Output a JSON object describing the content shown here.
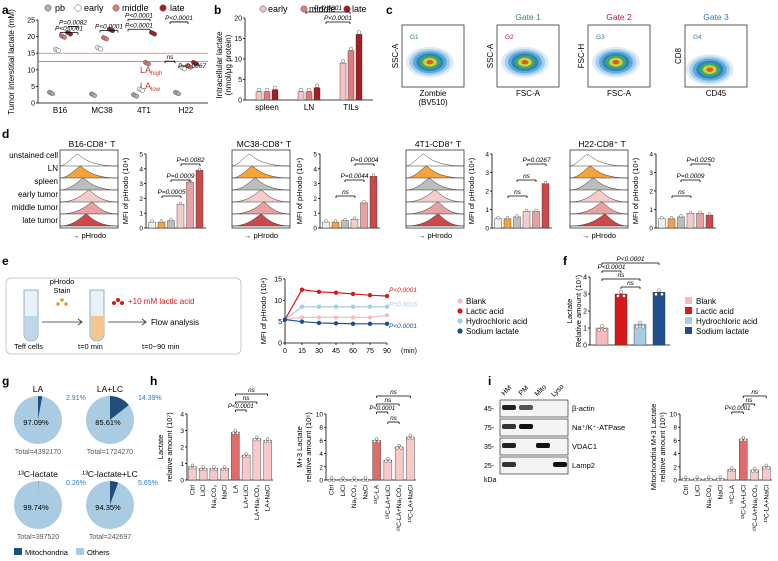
{
  "colors": {
    "early": "#f2c4c4",
    "middle": "#e07b7b",
    "late": "#a31f24",
    "pb": "#b0b0b0",
    "blank": "#f5bcbc",
    "lactic": "#d7191c",
    "hcl": "#a6cde3",
    "nalac": "#1f4e8c",
    "ctrl": "#f4a6a6",
    "orange": "#f3a43b",
    "mito": "#1f4e79",
    "others": "#a9cce3",
    "flowG": "#2b7bb9",
    "gate1": "#2e8b57",
    "gate2": "#b0203a",
    "gate3": "#2b7bb9"
  },
  "labels": {
    "a": "a",
    "b": "b",
    "c": "c",
    "d": "d",
    "e": "e",
    "f": "f",
    "g": "g",
    "h": "h",
    "i": "i"
  },
  "panel_a": {
    "legend": [
      "pb",
      "early",
      "middle",
      "late"
    ],
    "ylabel": "Tumor interstitial lactate (mM)",
    "yticks": [
      "0",
      "5",
      "10",
      "15",
      "20",
      "25"
    ],
    "categories": [
      "B16",
      "MC38",
      "4T1",
      "H22"
    ],
    "pvals": [
      "P=0.0082",
      "P<0.0001",
      "P<0.0001",
      "P<0.0001",
      "P<0.0001",
      "P<0.0001",
      "P=0.0067"
    ],
    "ns": "ns",
    "la_high": "LA",
    "la_high_sub": "high",
    "la_low": "LA",
    "la_low_sub": "low"
  },
  "panel_b": {
    "legend": [
      "early",
      "middle",
      "late"
    ],
    "ylabel1": "Intracellular lactate",
    "ylabel2": "(nmol/μg protein)",
    "yticks": [
      "0",
      "5",
      "10",
      "15",
      "20"
    ],
    "categories": [
      "spleen",
      "LN",
      "TILs"
    ],
    "pvals": [
      "P<0.0001",
      "P<0.0001"
    ]
  },
  "panel_c": {
    "plots": [
      {
        "title": "",
        "xlabel": "Zombie",
        "xlabel2": "(BV510)",
        "ylabel": "SSC-A",
        "gate": "G1"
      },
      {
        "title": "Gate 1",
        "xlabel": "FSC-A",
        "ylabel": "SSC-A",
        "gate": "G2"
      },
      {
        "title": "Gate 2",
        "xlabel": "FSC-A",
        "ylabel": "FSC-H",
        "gate": "G3"
      },
      {
        "title": "Gate 3",
        "xlabel": "CD45",
        "ylabel": "CD8",
        "gate": "G4"
      }
    ]
  },
  "panel_d": {
    "rows": [
      "unstained cell",
      "LN",
      "spleen",
      "early tumor",
      "middle tumor",
      "late tumor"
    ],
    "hist_xlabel": "→ pHrodo",
    "ylabel": "MFI of pHrodo (10⁴)",
    "groups": [
      {
        "title": "B16-CD8⁺ T",
        "yticks": [
          "0",
          "1",
          "2",
          "3",
          "4",
          "5"
        ],
        "pvals": [
          "P=0.0082",
          "P=0.0009",
          "P=0.0005"
        ]
      },
      {
        "title": "MC38-CD8⁺ T",
        "yticks": [
          "0",
          "1",
          "2",
          "3",
          "4",
          "5"
        ],
        "pvals": [
          "P=0.0004",
          "P=0.0044",
          "ns"
        ]
      },
      {
        "title": "4T1-CD8⁺ T",
        "yticks": [
          "0",
          "1",
          "2",
          "3",
          "4"
        ],
        "pvals": [
          "P=0.0267",
          "ns",
          "ns"
        ]
      },
      {
        "title": "H22-CD8⁺ T",
        "yticks": [
          "0",
          "1",
          "2",
          "3",
          "4"
        ],
        "pvals": [
          "P=0.0250",
          "P=0.0009",
          "ns"
        ]
      }
    ]
  },
  "panel_e": {
    "stain1": "pHrodo",
    "stain2": "Stain",
    "add": "+10 mM lactic acid",
    "flow": "Flow analysis",
    "teff": "Teff cells",
    "t0": "t=0 min",
    "t90": "t=0~90 min",
    "ylabel": "MFI of pHrodo (10⁴)",
    "xlabel": "(min)",
    "pvals": [
      "P<0.0001",
      "P=0.0016",
      "P<0.0001"
    ],
    "legend": [
      "Blank",
      "Lactic acid",
      "Hydrochloric acid",
      "Sodium lactate"
    ]
  },
  "panel_f": {
    "ylabel1": "Lactate",
    "ylabel2": "Relative amount (10⁷)",
    "yticks": [
      "0",
      "1",
      "2",
      "3",
      "4"
    ],
    "pvals": [
      "P<0.0001",
      "P<0.0001",
      "ns",
      "ns"
    ],
    "legend": [
      "Blank",
      "Lactic acid",
      "Hydrochloric acid",
      "Sodium lactate"
    ]
  },
  "panel_g": {
    "pies": [
      {
        "title": "LA",
        "mito": "2.91%",
        "others": "97.09%",
        "total": "Total=4392170"
      },
      {
        "title": "LA+LC",
        "mito": "14.39%",
        "others": "85.61%",
        "total": "Total=1724270"
      },
      {
        "title": "¹³C-lactate",
        "mito": "0.26%",
        "others": "99.74%",
        "total": "Total=397520"
      },
      {
        "title": "¹³C-lactate+LC",
        "mito": "5.65%",
        "others": "94.35%",
        "total": "Total=242697"
      }
    ],
    "legend": [
      "Mitochondria",
      "Others"
    ]
  },
  "panel_h": {
    "left": {
      "ylabel1": "Lactate",
      "ylabel2": "relative amount (10⁷)",
      "yticks": [
        "0",
        "1",
        "2",
        "3",
        "4"
      ],
      "ns": [
        "ns",
        "ns"
      ],
      "p": "P<0.0001",
      "categories": [
        "Ctrl",
        "LiCl",
        "Na₂CO₃",
        "NaCl",
        "LA",
        "LA+LiCl",
        "LA+Na₂CO₃",
        "LA+NaCl"
      ]
    },
    "right": {
      "ylabel1": "M+3 Lactate",
      "ylabel2": "relative amount (10⁶)",
      "yticks": [
        "0",
        "2",
        "4",
        "6",
        "8",
        "10"
      ],
      "ns": [
        "ns",
        "ns",
        "ns"
      ],
      "p": "P<0.0001",
      "categories": [
        "Ctrl",
        "LiCl",
        "Na₂CO₃",
        "NaCl",
        "¹³C-LA",
        "¹³C-LA+LiCl",
        "¹³C-LA+Na₂CO₃",
        "¹³C-LA+NaCl"
      ]
    }
  },
  "panel_i": {
    "lanes": [
      "HM",
      "PM",
      "Mito",
      "Lyso"
    ],
    "markers": [
      "45-",
      "75-",
      "35-",
      "25-"
    ],
    "kda": "kDa",
    "proteins": [
      "β-actin",
      "Na⁺/K⁺-ATPase",
      "VDAC1",
      "Lamp2"
    ],
    "chart": {
      "ylabel1": "Mitochondria M+3 Lactate",
      "ylabel2": "relative amount (10⁵)",
      "yticks": [
        "0",
        "2",
        "4",
        "6",
        "8",
        "10"
      ],
      "ns": [
        "ns",
        "ns",
        "ns"
      ],
      "p": "P<0.0001",
      "categories": [
        "Ctrl",
        "LiCl",
        "Na₂CO₃",
        "NaCl",
        "¹³C-LA",
        "¹³C-LA+LiCl",
        "¹³C-LA+Na₂CO₃",
        "¹³C-LA+NaCl"
      ]
    }
  },
  "chart_data": [
    {
      "panel": "a",
      "type": "scatter",
      "title": "",
      "ylabel": "Tumor interstitial lactate (mM)",
      "ylim": [
        0,
        25
      ],
      "categories": [
        "B16",
        "MC38",
        "4T1",
        "H22"
      ],
      "series": [
        {
          "name": "pb",
          "values": [
            3,
            2.5,
            2.3,
            3
          ]
        },
        {
          "name": "early",
          "values": [
            16,
            16.5,
            4,
            10.5
          ]
        },
        {
          "name": "middle",
          "values": [
            20,
            19.5,
            12,
            11
          ]
        },
        {
          "name": "late",
          "values": [
            21,
            22,
            21,
            12
          ]
        }
      ]
    },
    {
      "panel": "b",
      "type": "bar",
      "ylabel": "Intracellular lactate (nmol/μg protein)",
      "ylim": [
        0,
        20
      ],
      "categories": [
        "spleen",
        "LN",
        "TILs"
      ],
      "series": [
        {
          "name": "early",
          "values": [
            2,
            2,
            9
          ]
        },
        {
          "name": "middle",
          "values": [
            2,
            2,
            12
          ]
        },
        {
          "name": "late",
          "values": [
            2.5,
            3,
            16
          ]
        }
      ]
    },
    {
      "panel": "d",
      "type": "bar",
      "title": "B16-CD8⁺ T",
      "ylabel": "MFI of pHrodo (10⁴)",
      "ylim": [
        0,
        5
      ],
      "categories": [
        "unstained cell",
        "LN",
        "spleen",
        "early tumor",
        "middle tumor",
        "late tumor"
      ],
      "values": [
        0.4,
        0.4,
        0.5,
        1.6,
        3.1,
        3.9
      ]
    },
    {
      "panel": "d",
      "type": "bar",
      "title": "MC38-CD8⁺ T",
      "ylabel": "MFI of pHrodo (10⁴)",
      "ylim": [
        0,
        5
      ],
      "categories": [
        "unstained cell",
        "LN",
        "spleen",
        "early tumor",
        "middle tumor",
        "late tumor"
      ],
      "values": [
        0.4,
        0.4,
        0.5,
        0.6,
        1.7,
        3.5
      ]
    },
    {
      "panel": "d",
      "type": "bar",
      "title": "4T1-CD8⁺ T",
      "ylabel": "MFI of pHrodo (10⁴)",
      "ylim": [
        0,
        4
      ],
      "categories": [
        "unstained cell",
        "LN",
        "spleen",
        "early tumor",
        "middle tumor",
        "late tumor"
      ],
      "values": [
        0.5,
        0.5,
        0.6,
        0.9,
        0.9,
        2.4
      ]
    },
    {
      "panel": "d",
      "type": "bar",
      "title": "H22-CD8⁺ T",
      "ylabel": "MFI of pHrodo (10⁴)",
      "ylim": [
        0,
        4
      ],
      "categories": [
        "unstained cell",
        "LN",
        "spleen",
        "early tumor",
        "middle tumor",
        "late tumor"
      ],
      "values": [
        0.5,
        0.5,
        0.6,
        0.8,
        0.8,
        0.7
      ]
    },
    {
      "panel": "e",
      "type": "line",
      "ylabel": "MFI of pHrodo (10⁴)",
      "xlabel": "(min)",
      "x": [
        0,
        15,
        30,
        45,
        60,
        75,
        90
      ],
      "ylim": [
        0,
        15
      ],
      "xticks": [
        "0",
        "15",
        "30",
        "45",
        "60",
        "75",
        "90"
      ],
      "yticks": [
        "0",
        "5",
        "10",
        "15"
      ],
      "series": [
        {
          "name": "Blank",
          "values": [
            5.5,
            6,
            6,
            6,
            6,
            6,
            6.5
          ]
        },
        {
          "name": "Lactic acid",
          "values": [
            5.5,
            12.5,
            12,
            11.8,
            11.5,
            11.2,
            11
          ]
        },
        {
          "name": "Hydrochloric acid",
          "values": [
            5.5,
            8.5,
            8.5,
            8.5,
            8.5,
            8.5,
            8.5
          ]
        },
        {
          "name": "Sodium lactate",
          "values": [
            5.5,
            5,
            4.7,
            4.6,
            4.5,
            4.5,
            4.5
          ]
        }
      ]
    },
    {
      "panel": "f",
      "type": "bar",
      "ylabel": "Lactate Relative amount (10⁷)",
      "ylim": [
        0,
        4
      ],
      "categories": [
        "Blank",
        "Lactic acid",
        "Hydrochloric acid",
        "Sodium lactate"
      ],
      "values": [
        1,
        3,
        1.2,
        3.1
      ]
    },
    {
      "panel": "g",
      "type": "pie",
      "categories": [
        "Mitochondria",
        "Others"
      ],
      "series": [
        {
          "name": "LA",
          "values": [
            2.91,
            97.09
          ]
        },
        {
          "name": "LA+LC",
          "values": [
            14.39,
            85.61
          ]
        },
        {
          "name": "¹³C-lactate",
          "values": [
            0.26,
            99.74
          ]
        },
        {
          "name": "¹³C-lactate+LC",
          "values": [
            5.65,
            94.35
          ]
        }
      ]
    },
    {
      "panel": "h-left",
      "type": "bar",
      "ylabel": "Lactate relative amount (10⁷)",
      "ylim": [
        0,
        4
      ],
      "categories": [
        "Ctrl",
        "LiCl",
        "Na₂CO₃",
        "NaCl",
        "LA",
        "LA+LiCl",
        "LA+Na₂CO₃",
        "LA+NaCl"
      ],
      "values": [
        0.8,
        0.7,
        0.7,
        0.7,
        2.9,
        1.5,
        2.5,
        2.4
      ]
    },
    {
      "panel": "h-right",
      "type": "bar",
      "ylabel": "M+3 Lactate relative amount (10⁶)",
      "ylim": [
        0,
        10
      ],
      "categories": [
        "Ctrl",
        "LiCl",
        "Na₂CO₃",
        "NaCl",
        "¹³C-LA",
        "¹³C-LA+LiCl",
        "¹³C-LA+Na₂CO₃",
        "¹³C-LA+NaCl"
      ],
      "values": [
        0.1,
        0.1,
        0.1,
        0.1,
        6,
        3,
        5,
        6.5
      ]
    },
    {
      "panel": "i",
      "type": "bar",
      "ylabel": "Mitochondria M+3 Lactate relative amount (10⁵)",
      "ylim": [
        0,
        10
      ],
      "categories": [
        "Ctrl",
        "LiCl",
        "Na₂CO₃",
        "NaCl",
        "¹³C-LA",
        "¹³C-LA+LiCl",
        "¹³C-LA+Na₂CO₃",
        "¹³C-LA+NaCl"
      ],
      "values": [
        0.2,
        0.2,
        0.2,
        0.2,
        1.6,
        6.2,
        1.5,
        2
      ]
    }
  ]
}
